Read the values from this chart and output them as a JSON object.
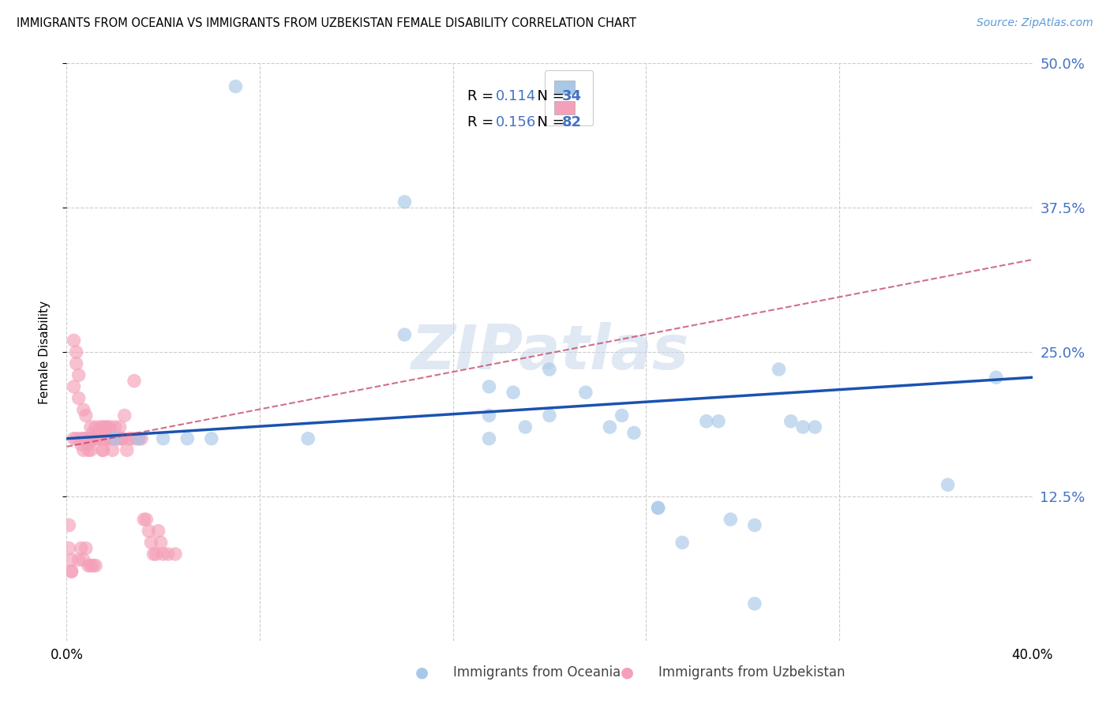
{
  "title": "IMMIGRANTS FROM OCEANIA VS IMMIGRANTS FROM UZBEKISTAN FEMALE DISABILITY CORRELATION CHART",
  "source": "Source: ZipAtlas.com",
  "ylabel": "Female Disability",
  "xlim": [
    0.0,
    0.4
  ],
  "ylim": [
    0.0,
    0.5
  ],
  "yticks": [
    0.125,
    0.25,
    0.375,
    0.5
  ],
  "ytick_labels": [
    "12.5%",
    "25.0%",
    "37.5%",
    "50.0%"
  ],
  "xticks": [
    0.0,
    0.08,
    0.16,
    0.24,
    0.32,
    0.4
  ],
  "xtick_labels": [
    "0.0%",
    "",
    "",
    "",
    "",
    "40.0%"
  ],
  "color_oceania": "#a8c8e8",
  "color_uzbekistan": "#f4a0b8",
  "color_line_oceania": "#1a52b0",
  "color_line_uzbekistan": "#c04060",
  "watermark": "ZIPatlas",
  "oceania_line_x0": 0.0,
  "oceania_line_y0": 0.175,
  "oceania_line_x1": 0.4,
  "oceania_line_y1": 0.228,
  "uzbek_line_x0": 0.0,
  "uzbek_line_y0": 0.168,
  "uzbek_line_x1": 0.4,
  "uzbek_line_y1": 0.33,
  "oceania_x": [
    0.07,
    0.14,
    0.14,
    0.185,
    0.19,
    0.2,
    0.2,
    0.215,
    0.225,
    0.23,
    0.235,
    0.245,
    0.245,
    0.255,
    0.265,
    0.27,
    0.275,
    0.285,
    0.285,
    0.295,
    0.3,
    0.305,
    0.31,
    0.365,
    0.385,
    0.02,
    0.03,
    0.04,
    0.05,
    0.06,
    0.1,
    0.175,
    0.175,
    0.175
  ],
  "oceania_y": [
    0.48,
    0.38,
    0.265,
    0.215,
    0.185,
    0.195,
    0.235,
    0.215,
    0.185,
    0.195,
    0.18,
    0.115,
    0.115,
    0.085,
    0.19,
    0.19,
    0.105,
    0.1,
    0.032,
    0.235,
    0.19,
    0.185,
    0.185,
    0.135,
    0.228,
    0.175,
    0.175,
    0.175,
    0.175,
    0.175,
    0.175,
    0.22,
    0.195,
    0.175
  ],
  "uzbekistan_x": [
    0.003,
    0.004,
    0.005,
    0.005,
    0.006,
    0.006,
    0.007,
    0.007,
    0.007,
    0.008,
    0.008,
    0.009,
    0.009,
    0.009,
    0.01,
    0.01,
    0.01,
    0.01,
    0.011,
    0.011,
    0.012,
    0.012,
    0.012,
    0.013,
    0.013,
    0.014,
    0.014,
    0.015,
    0.015,
    0.015,
    0.016,
    0.016,
    0.017,
    0.017,
    0.018,
    0.018,
    0.019,
    0.019,
    0.02,
    0.02,
    0.02,
    0.021,
    0.022,
    0.022,
    0.023,
    0.023,
    0.024,
    0.025,
    0.026,
    0.027,
    0.028,
    0.029,
    0.03,
    0.031,
    0.032,
    0.033,
    0.034,
    0.035,
    0.036,
    0.037,
    0.038,
    0.039,
    0.04,
    0.042,
    0.045,
    0.001,
    0.001,
    0.002,
    0.002,
    0.002,
    0.003,
    0.003,
    0.004,
    0.004,
    0.005,
    0.006,
    0.007,
    0.008,
    0.009,
    0.01,
    0.011,
    0.012
  ],
  "uzbekistan_y": [
    0.175,
    0.175,
    0.23,
    0.21,
    0.17,
    0.175,
    0.2,
    0.175,
    0.165,
    0.195,
    0.175,
    0.175,
    0.17,
    0.165,
    0.165,
    0.175,
    0.175,
    0.185,
    0.175,
    0.18,
    0.175,
    0.175,
    0.185,
    0.175,
    0.18,
    0.185,
    0.175,
    0.165,
    0.165,
    0.185,
    0.185,
    0.175,
    0.175,
    0.185,
    0.185,
    0.175,
    0.175,
    0.165,
    0.175,
    0.185,
    0.175,
    0.175,
    0.185,
    0.175,
    0.175,
    0.175,
    0.195,
    0.165,
    0.175,
    0.175,
    0.225,
    0.175,
    0.175,
    0.175,
    0.105,
    0.105,
    0.095,
    0.085,
    0.075,
    0.075,
    0.095,
    0.085,
    0.075,
    0.075,
    0.075,
    0.1,
    0.08,
    0.06,
    0.07,
    0.06,
    0.22,
    0.26,
    0.25,
    0.24,
    0.07,
    0.08,
    0.07,
    0.08,
    0.065,
    0.065,
    0.065,
    0.065
  ]
}
